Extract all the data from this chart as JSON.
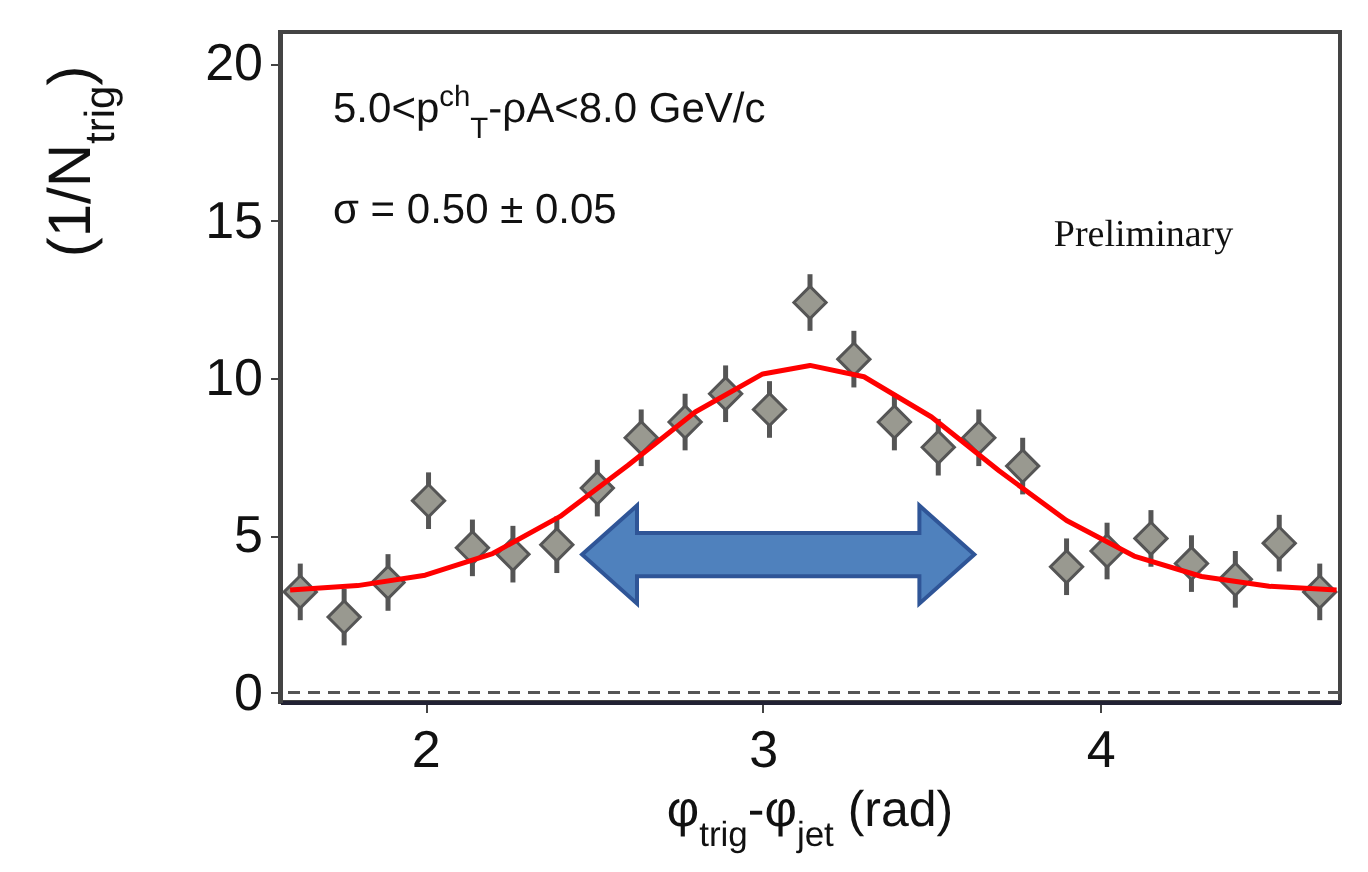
{
  "chart_data": {
    "type": "scatter",
    "xlabel": "φ$_{trig}$-φ$_{jet}$ (rad)",
    "ylabel": "(1/N$_{trig}$)",
    "annotations": [
      "5.0<p$^{ch}$$_{T}$-ρA<8.0 GeV/c",
      "σ = 0.50 ± 0.05",
      "Preliminary"
    ],
    "xlim": [
      1.57,
      4.71
    ],
    "ylim": [
      -0.3,
      21
    ],
    "xticks": [
      {
        "value": 2,
        "label": "2"
      },
      {
        "value": 3,
        "label": "3"
      },
      {
        "value": 4,
        "label": "4"
      }
    ],
    "yticks": [
      0,
      5,
      10,
      15,
      20
    ],
    "grid": false,
    "ref_lines": [
      {
        "axis": "y",
        "value": 0,
        "line_style": "dashed",
        "color": "#555555"
      }
    ],
    "series": [
      {
        "marker": "diamond",
        "color": "#999990",
        "x": [
          1.63,
          1.76,
          1.89,
          2.01,
          2.14,
          2.26,
          2.39,
          2.51,
          2.64,
          2.77,
          2.89,
          3.02,
          3.14,
          3.27,
          3.39,
          3.52,
          3.64,
          3.77,
          3.9,
          4.02,
          4.15,
          4.27,
          4.4,
          4.53,
          4.65
        ],
        "values": [
          3.2,
          2.4,
          3.5,
          6.1,
          4.6,
          4.4,
          4.7,
          6.5,
          8.1,
          8.6,
          9.5,
          9.0,
          12.4,
          10.6,
          8.6,
          7.8,
          8.1,
          7.2,
          4.0,
          4.5,
          4.9,
          4.1,
          3.6,
          4.75,
          3.2
        ],
        "errors": [
          0.9,
          0.9,
          0.9,
          0.9,
          0.9,
          0.9,
          0.9,
          0.9,
          0.9,
          0.9,
          0.9,
          0.9,
          0.9,
          0.9,
          0.9,
          0.9,
          0.9,
          0.9,
          0.9,
          0.9,
          0.9,
          0.9,
          0.9,
          0.9,
          0.9
        ]
      },
      {
        "type": "line",
        "marker": "none",
        "line_style": "solid",
        "color": "#ff0000",
        "x": [
          1.6,
          1.8,
          2.0,
          2.2,
          2.4,
          2.6,
          2.8,
          3.0,
          3.14,
          3.3,
          3.5,
          3.7,
          3.9,
          4.1,
          4.3,
          4.5,
          4.7
        ],
        "values": [
          3.26,
          3.4,
          3.73,
          4.42,
          5.6,
          7.22,
          8.92,
          10.13,
          10.4,
          10.04,
          8.76,
          7.05,
          5.47,
          4.34,
          3.69,
          3.38,
          3.26
        ]
      }
    ]
  }
}
